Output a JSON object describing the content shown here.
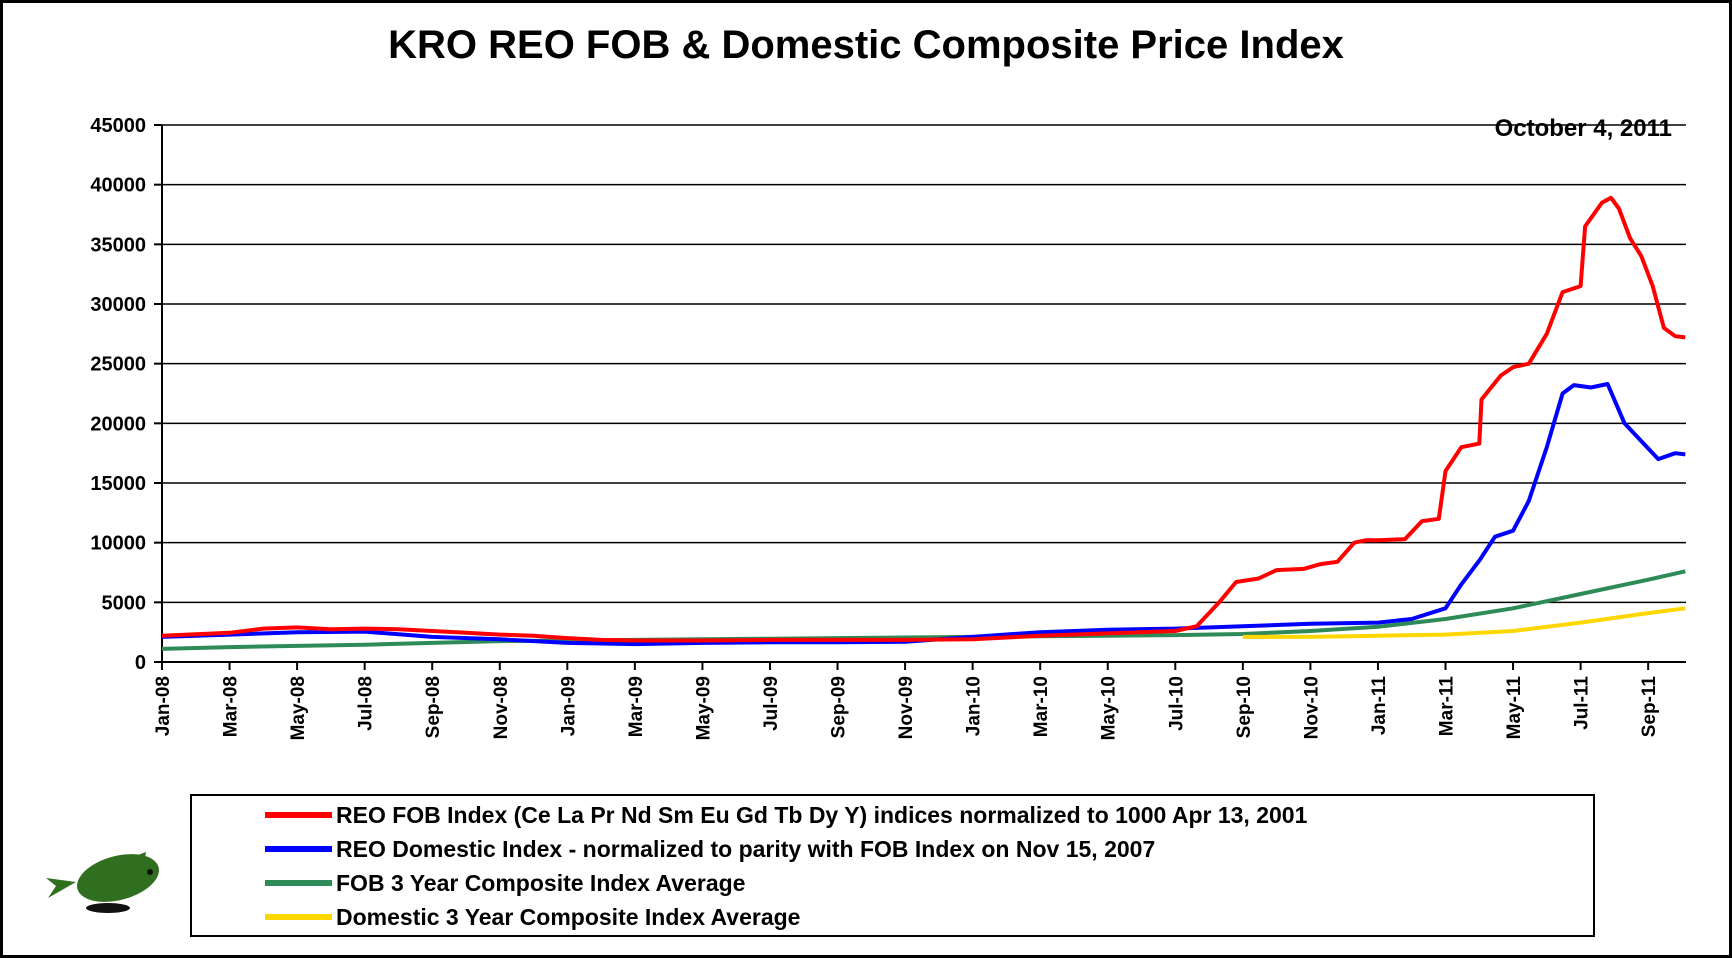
{
  "chart_data": {
    "type": "line",
    "title": "KRO REO FOB & Domestic Composite Price Index",
    "date_label": "October 4, 2011",
    "xlabel": "",
    "ylabel": "",
    "ylim": [
      0,
      45000
    ],
    "yticks": [
      0,
      5000,
      10000,
      15000,
      20000,
      25000,
      30000,
      35000,
      40000,
      45000
    ],
    "xlim": [
      "2008-01",
      "2011-10"
    ],
    "xtick_labels": [
      "Jan-08",
      "Mar-08",
      "May-08",
      "Jul-08",
      "Sep-08",
      "Nov-08",
      "Jan-09",
      "Mar-09",
      "May-09",
      "Jul-09",
      "Sep-09",
      "Nov-09",
      "Jan-10",
      "Mar-10",
      "May-10",
      "Jul-10",
      "Sep-10",
      "Nov-10",
      "Jan-11",
      "Mar-11",
      "May-11",
      "Jul-11",
      "Sep-11"
    ],
    "grid": "horizontal",
    "legend_position": "bottom",
    "series": [
      {
        "name": "REO FOB Index (Ce La Pr Nd Sm Eu Gd Tb Dy Y) indices normalized to 1000 Apr 13, 2001",
        "color": "#ff0000",
        "points": [
          [
            "2008-01",
            2200
          ],
          [
            "2008-03",
            2450
          ],
          [
            "2008-04",
            2800
          ],
          [
            "2008-05",
            2900
          ],
          [
            "2008-06",
            2750
          ],
          [
            "2008-07",
            2800
          ],
          [
            "2008-08",
            2750
          ],
          [
            "2008-09",
            2600
          ],
          [
            "2008-10",
            2450
          ],
          [
            "2008-11",
            2300
          ],
          [
            "2008-12",
            2200
          ],
          [
            "2009-01",
            2000
          ],
          [
            "2009-02",
            1850
          ],
          [
            "2009-03",
            1800
          ],
          [
            "2009-05",
            1800
          ],
          [
            "2009-07",
            1850
          ],
          [
            "2009-09",
            1850
          ],
          [
            "2009-11",
            1850
          ],
          [
            "2010-01",
            1900
          ],
          [
            "2010-03",
            2200
          ],
          [
            "2010-05",
            2400
          ],
          [
            "2010-07",
            2600
          ],
          [
            "2010-07-20",
            3000
          ],
          [
            "2010-08-10",
            5000
          ],
          [
            "2010-08-25",
            6700
          ],
          [
            "2010-09-15",
            7000
          ],
          [
            "2010-10-01",
            7700
          ],
          [
            "2010-10-25",
            7800
          ],
          [
            "2010-11-10",
            8200
          ],
          [
            "2010-11-25",
            8400
          ],
          [
            "2010-12-10",
            10000
          ],
          [
            "2010-12-20",
            10200
          ],
          [
            "2011-01-01",
            10200
          ],
          [
            "2011-01-25",
            10300
          ],
          [
            "2011-02-10",
            11800
          ],
          [
            "2011-02-25",
            12000
          ],
          [
            "2011-03-01",
            16000
          ],
          [
            "2011-03-15",
            18000
          ],
          [
            "2011-03-31",
            18300
          ],
          [
            "2011-04-03",
            22000
          ],
          [
            "2011-04-20",
            24000
          ],
          [
            "2011-05-01",
            24700
          ],
          [
            "2011-05-15",
            25000
          ],
          [
            "2011-05-31",
            27500
          ],
          [
            "2011-06-15",
            31000
          ],
          [
            "2011-07-01",
            31500
          ],
          [
            "2011-07-05",
            36500
          ],
          [
            "2011-07-20",
            38500
          ],
          [
            "2011-07-28",
            38900
          ],
          [
            "2011-08-05",
            38000
          ],
          [
            "2011-08-15",
            35500
          ],
          [
            "2011-08-25",
            34000
          ],
          [
            "2011-09-05",
            31500
          ],
          [
            "2011-09-15",
            28000
          ],
          [
            "2011-09-25",
            27300
          ],
          [
            "2011-10-04",
            27200
          ]
        ]
      },
      {
        "name": "REO Domestic Index -  normalized to parity with FOB Index on Nov 15, 2007",
        "color": "#0000ff",
        "points": [
          [
            "2008-01",
            2100
          ],
          [
            "2008-03",
            2300
          ],
          [
            "2008-05",
            2500
          ],
          [
            "2008-07",
            2550
          ],
          [
            "2008-09",
            2100
          ],
          [
            "2008-11",
            1900
          ],
          [
            "2009-01",
            1600
          ],
          [
            "2009-03",
            1500
          ],
          [
            "2009-05",
            1600
          ],
          [
            "2009-07",
            1650
          ],
          [
            "2009-09",
            1650
          ],
          [
            "2009-11",
            1700
          ],
          [
            "2010-01",
            2100
          ],
          [
            "2010-03",
            2500
          ],
          [
            "2010-05",
            2700
          ],
          [
            "2010-07",
            2800
          ],
          [
            "2010-09",
            3000
          ],
          [
            "2010-11",
            3200
          ],
          [
            "2011-01",
            3300
          ],
          [
            "2011-02",
            3600
          ],
          [
            "2011-03",
            4500
          ],
          [
            "2011-03-15",
            6500
          ],
          [
            "2011-04-01",
            8500
          ],
          [
            "2011-04-15",
            10500
          ],
          [
            "2011-05-01",
            11000
          ],
          [
            "2011-05-15",
            13500
          ],
          [
            "2011-06-01",
            18000
          ],
          [
            "2011-06-15",
            22500
          ],
          [
            "2011-06-25",
            23200
          ],
          [
            "2011-07-10",
            23000
          ],
          [
            "2011-07-25",
            23300
          ],
          [
            "2011-08-10",
            20000
          ],
          [
            "2011-08-25",
            18500
          ],
          [
            "2011-09-10",
            17000
          ],
          [
            "2011-09-25",
            17500
          ],
          [
            "2011-10-04",
            17400
          ]
        ]
      },
      {
        "name": "FOB 3 Year Composite Index Average",
        "color": "#2e8b57",
        "points": [
          [
            "2008-01",
            1100
          ],
          [
            "2008-03",
            1250
          ],
          [
            "2008-05",
            1350
          ],
          [
            "2008-07",
            1450
          ],
          [
            "2008-09",
            1600
          ],
          [
            "2008-11",
            1750
          ],
          [
            "2009-01",
            1800
          ],
          [
            "2009-03",
            1850
          ],
          [
            "2009-05",
            1900
          ],
          [
            "2009-07",
            1950
          ],
          [
            "2009-09",
            2000
          ],
          [
            "2009-11",
            2050
          ],
          [
            "2010-01",
            2100
          ],
          [
            "2010-03",
            2150
          ],
          [
            "2010-05",
            2200
          ],
          [
            "2010-07",
            2250
          ],
          [
            "2010-09",
            2350
          ],
          [
            "2010-11",
            2600
          ],
          [
            "2011-01",
            2950
          ],
          [
            "2011-03",
            3600
          ],
          [
            "2011-05",
            4500
          ],
          [
            "2011-07",
            5700
          ],
          [
            "2011-09",
            6900
          ],
          [
            "2011-10-04",
            7600
          ]
        ]
      },
      {
        "name": "Domestic 3 Year Composite Index Average",
        "color": "#ffd700",
        "points": [
          [
            "2010-09",
            2100
          ],
          [
            "2010-11",
            2100
          ],
          [
            "2011-01",
            2200
          ],
          [
            "2011-03",
            2300
          ],
          [
            "2011-05",
            2600
          ],
          [
            "2011-07",
            3300
          ],
          [
            "2011-09",
            4100
          ],
          [
            "2011-10-04",
            4500
          ]
        ]
      }
    ]
  }
}
